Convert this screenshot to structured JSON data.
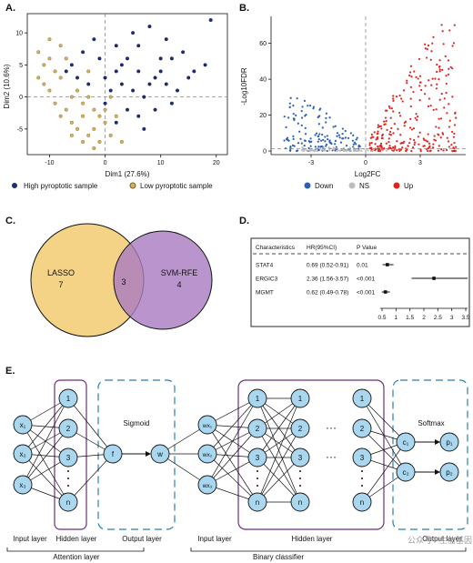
{
  "panels": {
    "A": {
      "label": "A.",
      "xlabel": "Dim1 (27.6%)",
      "ylabel": "Dim2 (10.6%)",
      "xticks": [
        "-10",
        "0",
        "10",
        "20"
      ],
      "yticks": [
        "10",
        "5",
        "0",
        "-5"
      ],
      "legend": [
        {
          "name": "High pyroptotic sample",
          "color": "#1f2c7a"
        },
        {
          "name": "Low pyroptotic sample",
          "color": "#d9b15a"
        }
      ]
    },
    "B": {
      "label": "B.",
      "xlabel": "Log2FC",
      "ylabel": "-Log10FDR",
      "xticks": [
        "-3",
        "0",
        "3"
      ],
      "yticks": [
        "60",
        "40",
        "20",
        "0"
      ],
      "legend": [
        {
          "name": "Down",
          "color": "#2b5fb4"
        },
        {
          "name": "NS",
          "color": "#bdbdbd"
        },
        {
          "name": "Up",
          "color": "#e1231e"
        }
      ]
    },
    "C": {
      "label": "C.",
      "left_name": "LASSO",
      "left_count": "7",
      "overlap_count": "3",
      "right_name": "SVM-RFE",
      "right_count": "4"
    },
    "D": {
      "label": "D.",
      "headers": [
        "Characteristics",
        "HR(95%CI)",
        "P Value"
      ],
      "rows": [
        {
          "name": "STAT4",
          "hr": "0.69 (0.52-0.91)",
          "p": "0.01",
          "est": 0.69,
          "lo": 0.52,
          "hi": 0.91
        },
        {
          "name": "ERGIC3",
          "hr": "2.36 (1.56-3.57)",
          "p": "<0.001",
          "est": 2.36,
          "lo": 1.56,
          "hi": 3.57
        },
        {
          "name": "MGMT",
          "hr": "0.62 (0.49-0.78)",
          "p": "<0.001",
          "est": 0.62,
          "lo": 0.49,
          "hi": 0.78
        }
      ],
      "xticks": [
        "0.5",
        "1",
        "1.5",
        "2",
        "2.5",
        "3",
        "3.5"
      ]
    },
    "E": {
      "label": "E.",
      "att_inputs": [
        "x₁",
        "x₂",
        "x₃"
      ],
      "hidden_nodes": [
        "1",
        "2",
        "3",
        "n"
      ],
      "sigmoid": "Sigmoid",
      "f_node": "f",
      "w_node": "w",
      "wx_nodes": [
        "wx₁",
        "wx₂",
        "wx₃"
      ],
      "softmax": "Softmax",
      "c_nodes": [
        "c₁",
        "c₂"
      ],
      "p_nodes": [
        "p₁",
        "p₂"
      ],
      "layer_labels": [
        "Input layer",
        "Hidden layer",
        "Output layer",
        "Input layer",
        "Hidden layer",
        "Output layer"
      ],
      "group_labels": [
        "Attention layer",
        "Binary classifier"
      ],
      "watermark": "公众号 · 生信基因"
    }
  },
  "chart_data": [
    {
      "type": "scatter",
      "panel": "A",
      "xlabel": "Dim1 (27.6%)",
      "ylabel": "Dim2 (10.6%)",
      "xlim": [
        -14,
        22
      ],
      "ylim": [
        -9,
        13
      ],
      "series": [
        {
          "name": "High pyroptotic sample",
          "points": [
            [
              -6,
              5
            ],
            [
              -4,
              7
            ],
            [
              -2,
              9
            ],
            [
              0,
              3
            ],
            [
              2,
              4
            ],
            [
              4,
              6
            ],
            [
              6,
              8
            ],
            [
              8,
              2
            ],
            [
              10,
              4
            ],
            [
              12,
              6
            ],
            [
              14,
              7
            ],
            [
              16,
              4
            ],
            [
              18,
              5
            ],
            [
              -3,
              2
            ],
            [
              1,
              1
            ],
            [
              3,
              2
            ],
            [
              5,
              1
            ],
            [
              7,
              0
            ],
            [
              9,
              3
            ],
            [
              11,
              2
            ],
            [
              -1,
              6
            ],
            [
              2,
              8
            ],
            [
              5,
              10
            ],
            [
              8,
              11
            ],
            [
              11,
              9
            ],
            [
              13,
              1
            ],
            [
              15,
              3
            ],
            [
              0,
              -1
            ],
            [
              4,
              -2
            ],
            [
              6,
              -3
            ],
            [
              9,
              -2
            ],
            [
              12,
              -1
            ],
            [
              19,
              12
            ],
            [
              -5,
              3
            ],
            [
              -7,
              4
            ],
            [
              3,
              5
            ],
            [
              6,
              4
            ],
            [
              10,
              6
            ],
            [
              2,
              -4
            ],
            [
              7,
              -5
            ]
          ]
        },
        {
          "name": "Low pyroptotic sample",
          "points": [
            [
              -12,
              7
            ],
            [
              -11,
              5
            ],
            [
              -10,
              6
            ],
            [
              -9,
              4
            ],
            [
              -8,
              3
            ],
            [
              -10,
              1
            ],
            [
              -9,
              -1
            ],
            [
              -8,
              -3
            ],
            [
              -7,
              -2
            ],
            [
              -6,
              -4
            ],
            [
              -5,
              -5
            ],
            [
              -4,
              -3
            ],
            [
              -3,
              -6
            ],
            [
              -2,
              -5
            ],
            [
              -1,
              -7
            ],
            [
              0,
              -4
            ],
            [
              -6,
              0
            ],
            [
              -5,
              1
            ],
            [
              -4,
              -1
            ],
            [
              -3,
              0
            ],
            [
              -2,
              -2
            ],
            [
              -1,
              -3
            ],
            [
              1,
              -6
            ],
            [
              2,
              -3
            ],
            [
              -11,
              2
            ],
            [
              -12,
              3
            ],
            [
              -7,
              6
            ],
            [
              -8,
              8
            ],
            [
              -10,
              9
            ],
            [
              -6,
              -6
            ],
            [
              -4,
              -7
            ],
            [
              -2,
              -8
            ],
            [
              1,
              0
            ],
            [
              -3,
              4
            ],
            [
              3,
              -7
            ],
            [
              0,
              -2
            ]
          ]
        }
      ]
    },
    {
      "type": "scatter",
      "panel": "B",
      "xlabel": "Log2FC",
      "ylabel": "-Log10FDR",
      "xlim": [
        -5.2,
        5.5
      ],
      "ylim": [
        -2,
        75
      ],
      "thresholds": {
        "x": [
          0
        ],
        "y": [
          1.3
        ]
      },
      "series": [
        {
          "name": "Down",
          "color": "#2b5fb4",
          "region": {
            "x": [
              -4.5,
              -0.2
            ],
            "ymax": 30
          }
        },
        {
          "name": "NS",
          "color": "#bdbdbd",
          "region": {
            "x": [
              -3.5,
              1.5
            ],
            "ymax": 2
          }
        },
        {
          "name": "Up",
          "color": "#e1231e",
          "region": {
            "x": [
              0.2,
              5.0
            ],
            "ymax": 72
          }
        }
      ]
    },
    {
      "type": "forest",
      "panel": "D",
      "xlim": [
        0.5,
        3.5
      ],
      "rows": [
        {
          "name": "STAT4",
          "est": 0.69,
          "lo": 0.52,
          "hi": 0.91
        },
        {
          "name": "ERGIC3",
          "est": 2.36,
          "lo": 1.56,
          "hi": 3.57
        },
        {
          "name": "MGMT",
          "est": 0.62,
          "lo": 0.49,
          "hi": 0.78
        }
      ]
    }
  ]
}
